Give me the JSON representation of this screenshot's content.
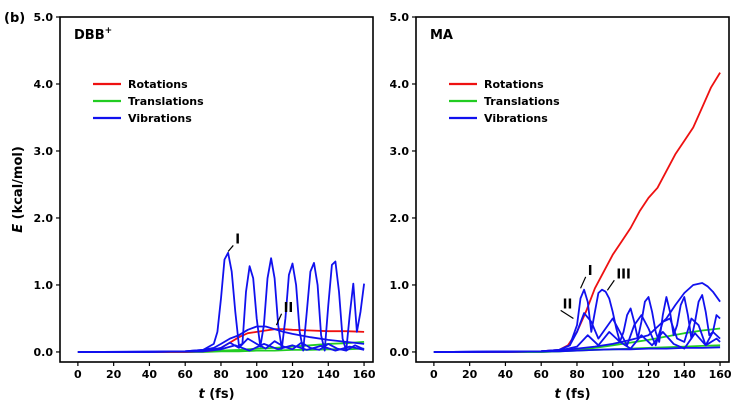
{
  "figure_label": "(b)",
  "chart_data": [
    {
      "type": "line",
      "panel_title": "DBB",
      "panel_title_sup": "+",
      "xlabel": "t",
      "xlabel_unit": "(fs)",
      "ylabel": "E",
      "ylabel_unit": "(kcal/mol)",
      "xlim": [
        -10,
        165
      ],
      "ylim": [
        -0.15,
        5.0
      ],
      "xticks": [
        0,
        20,
        40,
        60,
        80,
        100,
        120,
        140,
        160
      ],
      "yticks": [
        0.0,
        1.0,
        2.0,
        3.0,
        4.0,
        5.0
      ],
      "ytick_labels": [
        "0.0",
        "1.0",
        "2.0",
        "3.0",
        "4.0",
        "5.0"
      ],
      "legend": [
        {
          "label": "Rotations",
          "color": "#ee1111"
        },
        {
          "label": "Translations",
          "color": "#22cc22"
        },
        {
          "label": "Vibrations",
          "color": "#1111ee"
        }
      ],
      "annotations": [
        {
          "text": "I",
          "x": 88,
          "y": 1.62,
          "x1": 84,
          "y1": 1.5
        },
        {
          "text": "II",
          "x": 115,
          "y": 0.6,
          "x1": 111,
          "y1": 0.4
        }
      ],
      "series": [
        {
          "name": "Vibrations",
          "color": "#1111ee",
          "x": [
            0,
            20,
            40,
            60,
            70,
            76,
            78,
            80,
            82,
            84,
            86,
            88,
            90,
            92,
            94,
            96,
            98,
            100,
            102,
            104,
            106,
            108,
            110,
            112,
            114,
            116,
            118,
            120,
            122,
            124,
            126,
            128,
            130,
            132,
            134,
            136,
            138,
            140,
            142,
            144,
            146,
            148,
            150,
            152,
            154,
            156,
            158,
            160
          ],
          "y": [
            0,
            0,
            0,
            0.01,
            0.03,
            0.12,
            0.3,
            0.8,
            1.38,
            1.48,
            1.2,
            0.6,
            0.1,
            0.12,
            0.9,
            1.28,
            1.1,
            0.5,
            0.08,
            0.4,
            1.1,
            1.4,
            1.1,
            0.4,
            0.05,
            0.5,
            1.15,
            1.32,
            1.0,
            0.3,
            0.02,
            0.6,
            1.2,
            1.33,
            1.0,
            0.25,
            0.02,
            0.7,
            1.3,
            1.35,
            0.9,
            0.2,
            0.02,
            0.55,
            1.02,
            0.3,
            0.6,
            1.02
          ]
        },
        {
          "name": "Vibrations",
          "color": "#1111ee",
          "x": [
            0,
            40,
            60,
            70,
            76,
            80,
            85,
            90,
            95,
            100,
            105,
            110,
            115,
            120,
            130,
            140,
            150,
            160
          ],
          "y": [
            0,
            0,
            0.01,
            0.03,
            0.06,
            0.12,
            0.2,
            0.25,
            0.33,
            0.38,
            0.38,
            0.34,
            0.3,
            0.27,
            0.22,
            0.18,
            0.15,
            0.12
          ]
        },
        {
          "name": "Vibrations",
          "color": "#1111ee",
          "x": [
            0,
            70,
            80,
            85,
            90,
            95,
            100,
            105,
            110,
            115,
            120,
            125,
            130,
            135,
            140,
            145,
            150,
            155,
            160
          ],
          "y": [
            0,
            0.01,
            0.06,
            0.14,
            0.06,
            0.2,
            0.12,
            0.05,
            0.16,
            0.08,
            0.04,
            0.14,
            0.06,
            0.03,
            0.12,
            0.05,
            0.02,
            0.1,
            0.04
          ]
        },
        {
          "name": "Vibrations",
          "color": "#1111ee",
          "x": [
            0,
            70,
            80,
            88,
            96,
            104,
            112,
            120,
            128,
            136,
            144,
            152,
            160
          ],
          "y": [
            0,
            0.01,
            0.04,
            0.1,
            0.02,
            0.12,
            0.04,
            0.1,
            0.03,
            0.09,
            0.02,
            0.08,
            0.03
          ]
        },
        {
          "name": "Rotations",
          "color": "#ee1111",
          "x": [
            0,
            40,
            60,
            70,
            75,
            80,
            85,
            90,
            95,
            100,
            105,
            110,
            115,
            120,
            130,
            140,
            150,
            160
          ],
          "y": [
            0,
            0,
            0,
            0.01,
            0.02,
            0.06,
            0.14,
            0.22,
            0.28,
            0.3,
            0.32,
            0.34,
            0.34,
            0.33,
            0.32,
            0.31,
            0.31,
            0.3
          ]
        },
        {
          "name": "Translations",
          "color": "#22cc22",
          "x": [
            0,
            60,
            70,
            80,
            90,
            100,
            110,
            120,
            130,
            140,
            150,
            160
          ],
          "y": [
            0,
            0,
            0.01,
            0.02,
            0.03,
            0.05,
            0.06,
            0.08,
            0.1,
            0.12,
            0.13,
            0.15
          ]
        },
        {
          "name": "Translations",
          "color": "#22cc22",
          "x": [
            0,
            60,
            70,
            80,
            90,
            100,
            110,
            120,
            130,
            140,
            150,
            160
          ],
          "y": [
            0,
            0,
            0,
            0.01,
            0.01,
            0.02,
            0.02,
            0.03,
            0.03,
            0.04,
            0.04,
            0.05
          ]
        }
      ]
    },
    {
      "type": "line",
      "panel_title": "MA",
      "panel_title_sup": "",
      "xlabel": "t",
      "xlabel_unit": "(fs)",
      "ylabel": "",
      "ylabel_unit": "",
      "xlim": [
        -10,
        165
      ],
      "ylim": [
        -0.15,
        5.0
      ],
      "xticks": [
        0,
        20,
        40,
        60,
        80,
        100,
        120,
        140,
        160
      ],
      "yticks": [
        0.0,
        1.0,
        2.0,
        3.0,
        4.0,
        5.0
      ],
      "ytick_labels": [
        "0.0",
        "1.0",
        "2.0",
        "3.0",
        "4.0",
        "5.0"
      ],
      "legend": [
        {
          "label": "Rotations",
          "color": "#ee1111"
        },
        {
          "label": "Translations",
          "color": "#22cc22"
        },
        {
          "label": "Vibrations",
          "color": "#1111ee"
        }
      ],
      "annotations": [
        {
          "text": "I",
          "x": 86,
          "y": 1.15,
          "x1": 82,
          "y1": 0.95
        },
        {
          "text": "II",
          "x": 72,
          "y": 0.65,
          "x1": 78,
          "y1": 0.5
        },
        {
          "text": "III",
          "x": 102,
          "y": 1.1,
          "x1": 97,
          "y1": 0.92
        }
      ],
      "series": [
        {
          "name": "Rotations",
          "color": "#ee1111",
          "x": [
            0,
            40,
            60,
            70,
            75,
            80,
            85,
            90,
            95,
            100,
            105,
            110,
            115,
            120,
            125,
            130,
            135,
            140,
            145,
            150,
            155,
            160
          ],
          "y": [
            0,
            0,
            0.01,
            0.03,
            0.1,
            0.3,
            0.6,
            0.95,
            1.2,
            1.45,
            1.65,
            1.85,
            2.1,
            2.3,
            2.45,
            2.7,
            2.95,
            3.15,
            3.35,
            3.65,
            3.95,
            4.17
          ]
        },
        {
          "name": "Vibrations",
          "color": "#1111ee",
          "x": [
            0,
            40,
            60,
            70,
            76,
            80,
            82,
            84,
            86,
            88,
            90,
            92,
            94,
            96,
            98,
            100,
            102,
            104,
            106,
            108,
            110,
            112,
            114,
            116,
            118,
            120,
            122,
            124,
            126,
            128,
            130,
            132,
            134,
            136,
            138,
            140,
            142,
            144,
            146,
            148,
            150,
            152,
            154,
            156,
            158,
            160
          ],
          "y": [
            0,
            0,
            0.01,
            0.03,
            0.1,
            0.4,
            0.8,
            0.93,
            0.75,
            0.3,
            0.6,
            0.88,
            0.93,
            0.9,
            0.8,
            0.6,
            0.35,
            0.15,
            0.3,
            0.55,
            0.65,
            0.45,
            0.2,
            0.45,
            0.75,
            0.82,
            0.6,
            0.3,
            0.15,
            0.55,
            0.82,
            0.6,
            0.25,
            0.4,
            0.7,
            0.82,
            0.55,
            0.2,
            0.45,
            0.75,
            0.85,
            0.6,
            0.25,
            0.3,
            0.55,
            0.5
          ]
        },
        {
          "name": "Vibrations",
          "color": "#1111ee",
          "x": [
            0,
            60,
            70,
            76,
            80,
            84,
            88,
            92,
            96,
            100,
            104,
            108,
            112,
            116,
            120,
            124,
            128,
            132,
            136,
            140,
            144,
            148,
            152,
            156,
            160
          ],
          "y": [
            0,
            0.01,
            0.03,
            0.1,
            0.3,
            0.58,
            0.45,
            0.2,
            0.35,
            0.5,
            0.3,
            0.1,
            0.4,
            0.55,
            0.35,
            0.1,
            0.45,
            0.5,
            0.2,
            0.15,
            0.5,
            0.4,
            0.1,
            0.3,
            0.2
          ]
        },
        {
          "name": "Vibrations",
          "color": "#1111ee",
          "x": [
            0,
            60,
            70,
            80,
            90,
            100,
            110,
            120,
            130,
            135,
            140,
            145,
            150,
            153,
            156,
            160
          ],
          "y": [
            0,
            0.01,
            0.02,
            0.05,
            0.08,
            0.12,
            0.18,
            0.25,
            0.5,
            0.7,
            0.88,
            1.0,
            1.03,
            0.98,
            0.9,
            0.75
          ]
        },
        {
          "name": "Vibrations",
          "color": "#1111ee",
          "x": [
            0,
            60,
            70,
            80,
            86,
            92,
            98,
            104,
            110,
            116,
            122,
            128,
            134,
            140,
            146,
            152,
            158,
            160
          ],
          "y": [
            0,
            0.01,
            0.02,
            0.08,
            0.25,
            0.1,
            0.3,
            0.15,
            0.05,
            0.25,
            0.1,
            0.3,
            0.12,
            0.05,
            0.28,
            0.1,
            0.2,
            0.15
          ]
        },
        {
          "name": "Vibrations",
          "color": "#1111ee",
          "x": [
            0,
            70,
            80,
            90,
            100,
            110,
            120,
            130,
            140,
            150,
            160
          ],
          "y": [
            0,
            0.01,
            0.02,
            0.03,
            0.04,
            0.04,
            0.05,
            0.05,
            0.06,
            0.06,
            0.07
          ]
        },
        {
          "name": "Translations",
          "color": "#22cc22",
          "x": [
            0,
            60,
            70,
            80,
            90,
            100,
            110,
            120,
            130,
            140,
            150,
            160
          ],
          "y": [
            0,
            0,
            0.01,
            0.03,
            0.06,
            0.1,
            0.14,
            0.18,
            0.23,
            0.28,
            0.32,
            0.35
          ]
        },
        {
          "name": "Translations",
          "color": "#22cc22",
          "x": [
            0,
            60,
            70,
            80,
            90,
            100,
            110,
            120,
            130,
            140,
            150,
            160
          ],
          "y": [
            0,
            0,
            0.01,
            0.02,
            0.03,
            0.04,
            0.05,
            0.06,
            0.07,
            0.08,
            0.09,
            0.1
          ]
        }
      ]
    }
  ]
}
